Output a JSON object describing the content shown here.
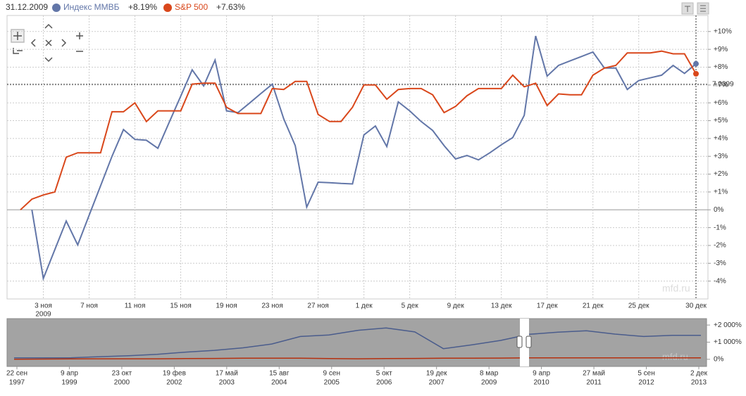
{
  "chart_data": {
    "type": "line",
    "date": "31.12.2009",
    "categories": [
      null,
      null,
      "3 ноя",
      null,
      null,
      null,
      "7 ноя",
      null,
      null,
      null,
      "11 ноя",
      null,
      null,
      null,
      "15 ноя",
      null,
      null,
      null,
      "19 ноя",
      null,
      null,
      null,
      "23 ноя",
      null,
      null,
      null,
      "27 ноя",
      null,
      null,
      null,
      "1 дек",
      null,
      null,
      null,
      "5 дек",
      null,
      null,
      null,
      "9 дек",
      null,
      null,
      null,
      "13 дек",
      null,
      null,
      null,
      "17 дек",
      null,
      null,
      null,
      "21 дек",
      null,
      null,
      null,
      "25 дек",
      null,
      null,
      null,
      null,
      "30 дек"
    ],
    "x_year_label": "2009",
    "series": [
      {
        "name": "Индекс ММВБ",
        "change": "+8.19%",
        "color": "#6276a8",
        "values": [
          null,
          0,
          -3.85,
          -2.24,
          -0.63,
          -1.97,
          -0.31,
          1.35,
          3.0,
          4.5,
          3.95,
          3.9,
          3.45,
          4.92,
          6.38,
          7.85,
          6.95,
          8.4,
          5.55,
          5.45,
          5.98,
          6.52,
          7.05,
          5.1,
          3.6,
          0.15,
          1.55,
          1.52,
          1.48,
          1.45,
          4.2,
          4.7,
          3.55,
          6.05,
          5.55,
          4.95,
          4.45,
          3.6,
          2.85,
          3.05,
          2.8,
          3.2,
          3.65,
          4.05,
          5.3,
          9.75,
          7.5,
          8.1,
          8.35,
          8.6,
          8.85,
          7.95,
          7.95,
          6.75,
          7.25,
          7.4,
          7.55,
          8.1,
          7.65,
          8.19
        ]
      },
      {
        "name": "S&P 500",
        "change": "+7.63%",
        "color": "#d9471b",
        "values": [
          0,
          0.6,
          0.83,
          1.0,
          2.95,
          3.2,
          3.2,
          3.2,
          5.5,
          5.5,
          6.0,
          4.95,
          5.55,
          5.55,
          5.55,
          7.05,
          7.1,
          7.1,
          5.75,
          5.4,
          5.4,
          5.4,
          6.8,
          6.75,
          7.2,
          7.2,
          5.35,
          4.95,
          4.95,
          5.75,
          7.0,
          7.0,
          6.2,
          6.75,
          6.8,
          6.8,
          6.45,
          5.45,
          5.8,
          6.4,
          6.8,
          6.8,
          6.8,
          7.55,
          6.9,
          7.1,
          5.85,
          6.5,
          6.45,
          6.45,
          7.55,
          7.95,
          8.1,
          8.8,
          8.8,
          8.8,
          8.9,
          8.75,
          8.75,
          7.63
        ]
      }
    ],
    "ylim": [
      -5,
      10.9
    ],
    "yticks": [
      {
        "value": 10,
        "label": "+10%"
      },
      {
        "value": 9,
        "label": "+9%"
      },
      {
        "value": 8,
        "label": "+8%"
      },
      {
        "value": 7,
        "label": "+7%"
      },
      {
        "value": 6,
        "label": "+6%"
      },
      {
        "value": 5,
        "label": "+5%"
      },
      {
        "value": 4,
        "label": "+4%"
      },
      {
        "value": 3,
        "label": "+3%"
      },
      {
        "value": 2,
        "label": "+2%"
      },
      {
        "value": 1,
        "label": "+1%"
      },
      {
        "value": 0,
        "label": "0%"
      },
      {
        "value": -1,
        "label": "-1%"
      },
      {
        "value": -2,
        "label": "-2%"
      },
      {
        "value": -3,
        "label": "-3%"
      },
      {
        "value": -4,
        "label": "-4%"
      }
    ],
    "grid": true,
    "crosshair_value": 7.0399,
    "watermark": "mfd.ru",
    "navigator": {
      "xticks": [
        [
          "22 сен",
          "1997"
        ],
        [
          "9 апр",
          "1999"
        ],
        [
          "23 окт",
          "2000"
        ],
        [
          "19 фев",
          "2002"
        ],
        [
          "17 май",
          "2003"
        ],
        [
          "15 авг",
          "2004"
        ],
        [
          "9 сен",
          "2005"
        ],
        [
          "5 окт",
          "2006"
        ],
        [
          "19 дек",
          "2007"
        ],
        [
          "8 мар",
          "2009"
        ],
        [
          "9 апр",
          "2010"
        ],
        [
          "27 май",
          "2011"
        ],
        [
          "5 сен",
          "2012"
        ],
        [
          "2 дек",
          "2013"
        ]
      ],
      "ylim": [
        -420,
        2375
      ],
      "yticks": [
        {
          "value": 2000,
          "label": "+2 000%"
        },
        {
          "value": 1000,
          "label": "+1 000%"
        },
        {
          "value": 0,
          "label": "0%"
        }
      ],
      "series": [
        {
          "color": "#4a5c8c",
          "values": [
            80,
            80,
            90,
            150,
            210,
            290,
            420,
            520,
            670,
            890,
            1330,
            1420,
            1690,
            1830,
            1600,
            620,
            840,
            1100,
            1460,
            1580,
            1670,
            1470,
            1330,
            1400,
            1400
          ]
        },
        {
          "color": "#b5300f",
          "values": [
            0,
            10,
            20,
            30,
            30,
            30,
            40,
            50,
            60,
            60,
            60,
            40,
            30,
            40,
            50,
            60,
            60,
            70,
            80,
            80,
            80,
            80,
            80,
            80,
            80
          ]
        }
      ]
    }
  }
}
